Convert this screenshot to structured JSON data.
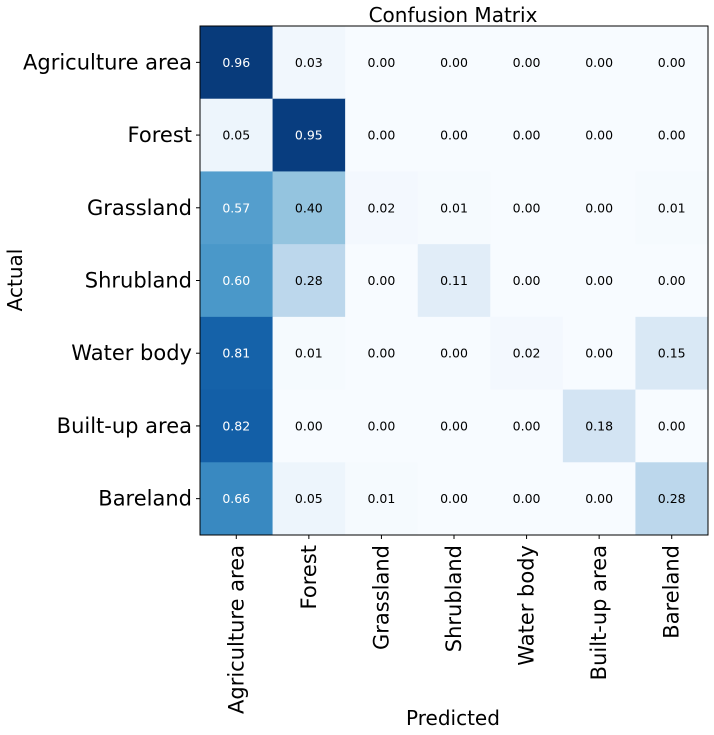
{
  "chart_data": {
    "type": "heatmap",
    "title": "Confusion Matrix",
    "xlabel": "Predicted",
    "ylabel": "Actual",
    "colormap": "Blues",
    "value_range": [
      0,
      1
    ],
    "rows": [
      "Agriculture area",
      "Forest",
      "Grassland",
      "Shrubland",
      "Water body",
      "Built-up area",
      "Bareland"
    ],
    "columns": [
      "Agriculture area",
      "Forest",
      "Grassland",
      "Shrubland",
      "Water body",
      "Built-up area",
      "Bareland"
    ],
    "values": [
      [
        0.96,
        0.03,
        0.0,
        0.0,
        0.0,
        0.0,
        0.0
      ],
      [
        0.05,
        0.95,
        0.0,
        0.0,
        0.0,
        0.0,
        0.0
      ],
      [
        0.57,
        0.4,
        0.02,
        0.01,
        0.0,
        0.0,
        0.01
      ],
      [
        0.6,
        0.28,
        0.0,
        0.11,
        0.0,
        0.0,
        0.0
      ],
      [
        0.81,
        0.01,
        0.0,
        0.0,
        0.02,
        0.0,
        0.15
      ],
      [
        0.82,
        0.0,
        0.0,
        0.0,
        0.0,
        0.18,
        0.0
      ],
      [
        0.66,
        0.05,
        0.01,
        0.0,
        0.0,
        0.0,
        0.28
      ]
    ],
    "value_labels": [
      [
        "0.96",
        "0.03",
        "0.00",
        "0.00",
        "0.00",
        "0.00",
        "0.00"
      ],
      [
        "0.05",
        "0.95",
        "0.00",
        "0.00",
        "0.00",
        "0.00",
        "0.00"
      ],
      [
        "0.57",
        "0.40",
        "0.02",
        "0.01",
        "0.00",
        "0.00",
        "0.01"
      ],
      [
        "0.60",
        "0.28",
        "0.00",
        "0.11",
        "0.00",
        "0.00",
        "0.00"
      ],
      [
        "0.81",
        "0.01",
        "0.00",
        "0.00",
        "0.02",
        "0.00",
        "0.15"
      ],
      [
        "0.82",
        "0.00",
        "0.00",
        "0.00",
        "0.00",
        "0.18",
        "0.00"
      ],
      [
        "0.66",
        "0.05",
        "0.01",
        "0.00",
        "0.00",
        "0.00",
        "0.28"
      ]
    ]
  }
}
